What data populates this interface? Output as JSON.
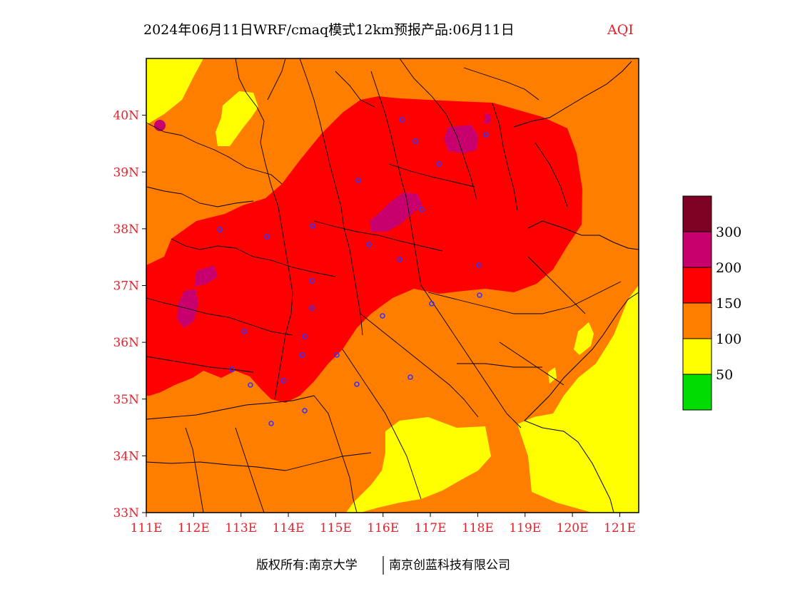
{
  "title": {
    "main": "2024年06月11日WRF/cmaq模式12km预报产品:06月11日",
    "aqi": "AQI",
    "aqi_color": "#e8202a"
  },
  "map": {
    "lon_range": [
      111,
      121.4
    ],
    "lat_range": [
      33,
      41
    ],
    "lon_ticks": [
      "111E",
      "112E",
      "113E",
      "114E",
      "115E",
      "116E",
      "117E",
      "118E",
      "119E",
      "120E",
      "121E"
    ],
    "lat_ticks": [
      "33N",
      "34N",
      "35N",
      "36N",
      "37N",
      "38N",
      "39N",
      "40N"
    ],
    "tick_color": "#e8202a",
    "level_colors": {
      "good": "#00dd00",
      "moderate": "#ffff00",
      "unhealthy_sensitive": "#ff7e00",
      "unhealthy": "#ff0000",
      "very_unhealthy": "#c8006e",
      "hazardous": "#7e0023"
    },
    "station_color": "#3333ff"
  },
  "legend": {
    "labels": [
      "50",
      "100",
      "150",
      "200",
      "300"
    ]
  },
  "footer": {
    "copyright": "版权所有:南京大学",
    "company": "南京创蓝科技有限公司"
  }
}
